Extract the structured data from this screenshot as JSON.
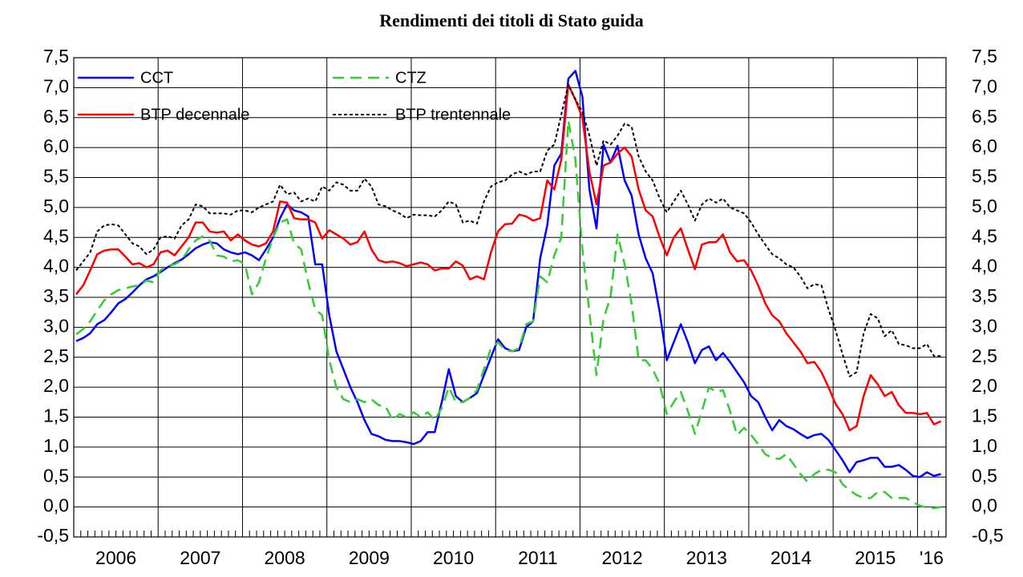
{
  "chart_data": {
    "type": "line",
    "title": "Rendimenti dei titoli di Stato guida",
    "categories": [
      null,
      null,
      null,
      null,
      null,
      null,
      "2006",
      null,
      null,
      null,
      null,
      null,
      null,
      null,
      null,
      null,
      null,
      null,
      "2007",
      null,
      null,
      null,
      null,
      null,
      null,
      null,
      null,
      null,
      null,
      null,
      "2008",
      null,
      null,
      null,
      null,
      null,
      null,
      null,
      null,
      null,
      null,
      null,
      "2009",
      null,
      null,
      null,
      null,
      null,
      null,
      null,
      null,
      null,
      null,
      null,
      "2010",
      null,
      null,
      null,
      null,
      null,
      null,
      null,
      null,
      null,
      null,
      null,
      "2011",
      null,
      null,
      null,
      null,
      null,
      null,
      null,
      null,
      null,
      null,
      null,
      "2012",
      null,
      null,
      null,
      null,
      null,
      null,
      null,
      null,
      null,
      null,
      null,
      "2013",
      null,
      null,
      null,
      null,
      null,
      null,
      null,
      null,
      null,
      null,
      null,
      "2014",
      null,
      null,
      null,
      null,
      null,
      null,
      null,
      null,
      null,
      null,
      null,
      "2015",
      null,
      null,
      null,
      null,
      null,
      null,
      null,
      "'16",
      null
    ],
    "series": [
      {
        "name": "CCT",
        "color": "#0000ff",
        "dash": "solid",
        "values": [
          2.77,
          2.82,
          2.9,
          3.05,
          3.12,
          3.25,
          3.4,
          3.47,
          3.58,
          3.7,
          3.8,
          3.85,
          3.92,
          4.0,
          4.07,
          4.13,
          4.22,
          4.32,
          4.38,
          4.42,
          4.4,
          4.3,
          4.25,
          4.22,
          4.25,
          4.2,
          4.12,
          4.3,
          4.5,
          4.82,
          5.05,
          4.95,
          4.92,
          4.85,
          4.05,
          4.05,
          3.2,
          2.6,
          2.3,
          2.0,
          1.75,
          1.45,
          1.22,
          1.18,
          1.12,
          1.1,
          1.1,
          1.08,
          1.05,
          1.1,
          1.25,
          1.25,
          1.75,
          2.3,
          1.85,
          1.75,
          1.82,
          1.9,
          2.2,
          2.5,
          2.8,
          2.65,
          2.6,
          2.62,
          3.0,
          3.1,
          4.15,
          4.7,
          5.7,
          5.9,
          7.15,
          7.28,
          6.85,
          5.3,
          4.65,
          6.05,
          5.75,
          6.03,
          5.45,
          5.2,
          4.55,
          4.15,
          3.9,
          3.25,
          2.45,
          2.75,
          3.05,
          2.75,
          2.4,
          2.62,
          2.68,
          2.45,
          2.57,
          2.42,
          2.25,
          2.08,
          1.85,
          1.75,
          1.5,
          1.28,
          1.45,
          1.35,
          1.3,
          1.22,
          1.15,
          1.2,
          1.22,
          1.12,
          0.95,
          0.78,
          0.58,
          0.75,
          0.78,
          0.82,
          0.82,
          0.67,
          0.67,
          0.7,
          0.62,
          0.52,
          0.5,
          0.58,
          0.52,
          0.55
        ]
      },
      {
        "name": "CTZ",
        "color": "#33cc33",
        "dash": "dashed",
        "values": [
          2.88,
          2.97,
          3.1,
          3.28,
          3.45,
          3.55,
          3.62,
          3.65,
          3.68,
          3.7,
          3.78,
          3.75,
          3.95,
          4.02,
          4.05,
          4.12,
          4.3,
          4.45,
          4.52,
          4.45,
          4.2,
          4.18,
          4.1,
          4.12,
          4.05,
          3.55,
          3.75,
          4.15,
          4.5,
          4.75,
          4.8,
          4.4,
          4.3,
          3.75,
          3.3,
          3.2,
          2.45,
          2.0,
          1.8,
          1.75,
          1.8,
          1.75,
          1.8,
          1.7,
          1.68,
          1.45,
          1.55,
          1.5,
          1.58,
          1.5,
          1.58,
          1.45,
          1.65,
          2.0,
          1.75,
          1.75,
          1.82,
          1.95,
          2.3,
          2.65,
          2.75,
          2.62,
          2.6,
          2.65,
          3.05,
          3.1,
          3.85,
          3.75,
          4.2,
          4.5,
          6.45,
          5.8,
          4.3,
          3.25,
          2.2,
          3.15,
          3.5,
          4.55,
          4.05,
          3.4,
          2.45,
          2.45,
          2.3,
          2.05,
          1.55,
          1.75,
          1.92,
          1.6,
          1.22,
          1.6,
          2.0,
          1.92,
          1.95,
          1.6,
          1.2,
          1.32,
          1.2,
          1.05,
          0.88,
          0.82,
          0.8,
          0.88,
          0.72,
          0.55,
          0.42,
          0.55,
          0.62,
          0.62,
          0.58,
          0.38,
          0.28,
          0.2,
          0.15,
          0.15,
          0.25,
          0.25,
          0.15,
          0.15,
          0.15,
          0.08,
          0.02,
          -0.01,
          -0.02,
          0.0
        ]
      },
      {
        "name": "BTP decennale",
        "color": "#ff0000",
        "dash": "solid",
        "values": [
          3.55,
          3.7,
          3.95,
          4.22,
          4.28,
          4.3,
          4.3,
          4.18,
          4.05,
          4.07,
          4.0,
          4.05,
          4.25,
          4.28,
          4.2,
          4.35,
          4.5,
          4.75,
          4.75,
          4.6,
          4.58,
          4.6,
          4.45,
          4.55,
          4.45,
          4.38,
          4.35,
          4.4,
          4.6,
          5.1,
          5.08,
          4.82,
          4.8,
          4.8,
          4.75,
          4.48,
          4.62,
          4.55,
          4.48,
          4.38,
          4.42,
          4.6,
          4.3,
          4.12,
          4.08,
          4.1,
          4.07,
          4.02,
          4.05,
          4.08,
          4.05,
          3.95,
          3.98,
          3.98,
          4.1,
          4.03,
          3.8,
          3.85,
          3.8,
          4.25,
          4.6,
          4.72,
          4.73,
          4.88,
          4.85,
          4.78,
          4.82,
          5.45,
          5.3,
          5.8,
          7.05,
          6.8,
          6.5,
          5.6,
          5.05,
          5.7,
          5.75,
          5.9,
          6.0,
          5.85,
          5.3,
          4.95,
          4.85,
          4.5,
          4.2,
          4.5,
          4.65,
          4.3,
          3.97,
          4.38,
          4.42,
          4.42,
          4.55,
          4.25,
          4.1,
          4.12,
          3.95,
          3.7,
          3.4,
          3.2,
          3.1,
          2.9,
          2.75,
          2.6,
          2.4,
          2.42,
          2.25,
          2.0,
          1.72,
          1.55,
          1.28,
          1.35,
          1.85,
          2.2,
          2.05,
          1.85,
          1.92,
          1.7,
          1.57,
          1.57,
          1.55,
          1.57,
          1.38,
          1.43
        ]
      },
      {
        "name": "BTP trentennale",
        "color": "#000000",
        "dash": "dotted",
        "values": [
          3.95,
          4.1,
          4.25,
          4.6,
          4.7,
          4.72,
          4.7,
          4.55,
          4.4,
          4.35,
          4.22,
          4.3,
          4.5,
          4.52,
          4.48,
          4.7,
          4.8,
          5.05,
          5.02,
          4.9,
          4.9,
          4.9,
          4.88,
          4.95,
          4.95,
          4.92,
          5.0,
          5.05,
          5.1,
          5.38,
          5.22,
          5.25,
          5.1,
          5.15,
          5.1,
          5.35,
          5.28,
          5.42,
          5.38,
          5.28,
          5.28,
          5.48,
          5.35,
          5.05,
          5.02,
          4.95,
          4.9,
          4.82,
          4.88,
          4.87,
          4.87,
          4.85,
          4.95,
          5.1,
          5.05,
          4.75,
          4.78,
          4.73,
          5.1,
          5.35,
          5.42,
          5.45,
          5.55,
          5.6,
          5.55,
          5.6,
          5.6,
          5.95,
          6.05,
          6.55,
          7.05,
          6.8,
          6.6,
          6.2,
          5.7,
          6.12,
          6.05,
          6.2,
          6.4,
          6.35,
          5.85,
          5.6,
          5.45,
          5.15,
          4.92,
          5.1,
          5.28,
          5.05,
          4.78,
          5.05,
          5.15,
          5.08,
          5.15,
          5.0,
          4.95,
          4.9,
          4.75,
          4.55,
          4.38,
          4.22,
          4.15,
          4.05,
          4.0,
          3.85,
          3.65,
          3.72,
          3.7,
          3.3,
          2.95,
          2.55,
          2.18,
          2.25,
          2.9,
          3.22,
          3.15,
          2.85,
          2.95,
          2.72,
          2.7,
          2.65,
          2.65,
          2.72,
          2.52,
          2.52
        ]
      }
    ],
    "ylim": [
      -0.5,
      7.5
    ],
    "yticks": [
      {
        "value": -0.5,
        "label": "-0,5"
      },
      {
        "value": 0,
        "label": "0,0"
      },
      {
        "value": 0.5,
        "label": "0,5"
      },
      {
        "value": 1,
        "label": "1,0"
      },
      {
        "value": 1.5,
        "label": "1,5"
      },
      {
        "value": 2,
        "label": "2,0"
      },
      {
        "value": 2.5,
        "label": "2,5"
      },
      {
        "value": 3,
        "label": "3,0"
      },
      {
        "value": 3.5,
        "label": "3,5"
      },
      {
        "value": 4,
        "label": "4,0"
      },
      {
        "value": 4.5,
        "label": "4,5"
      },
      {
        "value": 5,
        "label": "5,0"
      },
      {
        "value": 5.5,
        "label": "5,5"
      },
      {
        "value": 6,
        "label": "6,0"
      },
      {
        "value": 6.5,
        "label": "6,5"
      },
      {
        "value": 7,
        "label": "7,0"
      },
      {
        "value": 7.5,
        "label": "7,5"
      }
    ],
    "y2lim": [
      -0.5,
      7.5
    ],
    "y2ticks": [
      {
        "value": -0.5,
        "label": "-0,5"
      },
      {
        "value": 0,
        "label": "0,0"
      },
      {
        "value": 0.5,
        "label": "0,5"
      },
      {
        "value": 1,
        "label": "1,0"
      },
      {
        "value": 1.5,
        "label": "1,5"
      },
      {
        "value": 2,
        "label": "2,0"
      },
      {
        "value": 2.5,
        "label": "2,5"
      },
      {
        "value": 3,
        "label": "3,0"
      },
      {
        "value": 3.5,
        "label": "3,5"
      },
      {
        "value": 4,
        "label": "4,0"
      },
      {
        "value": 4.5,
        "label": "4,5"
      },
      {
        "value": 5,
        "label": "5,0"
      },
      {
        "value": 5.5,
        "label": "5,5"
      },
      {
        "value": 6,
        "label": "6,0"
      },
      {
        "value": 6.5,
        "label": "6,5"
      },
      {
        "value": 7,
        "label": "7,0"
      },
      {
        "value": 7.5,
        "label": "7,5"
      }
    ],
    "grid": true,
    "legend": "top-left"
  }
}
